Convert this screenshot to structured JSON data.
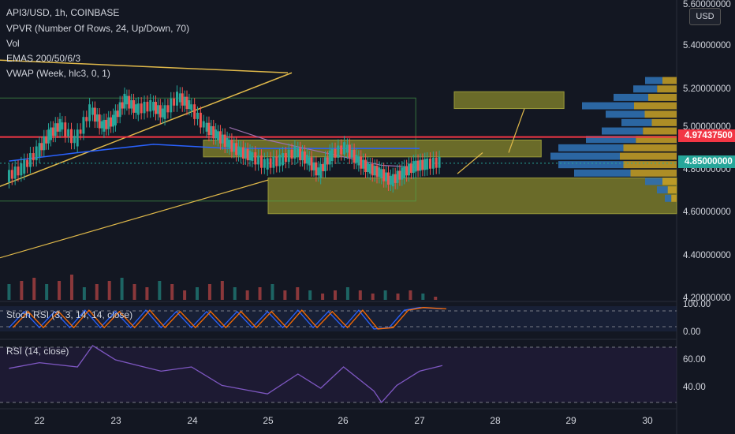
{
  "header": {
    "symbol_line": "API3/USD, 1h, COINBASE",
    "indicators": [
      "VPVR (Number Of Rows, 24, Up/Down, 70)",
      "Vol",
      "EMAS 200/50/6/3",
      "VWAP (Week, hlc3, 0, 1)"
    ]
  },
  "currency_button": "USD",
  "price_axis": {
    "labels": [
      "5.60000000",
      "5.40000000",
      "5.20000000",
      "5.00000000",
      "4.80000000",
      "4.60000000",
      "4.40000000",
      "4.20000000"
    ],
    "red_tag": "4.97437500",
    "green_tag": "4.85000000"
  },
  "stoch_panel": {
    "title": "Stoch RSI (3, 3, 14, 14, close)",
    "labels": [
      "100.00",
      "0.00"
    ]
  },
  "rsi_panel": {
    "title": "RSI (14, close)",
    "labels": [
      "60.00",
      "40.00"
    ]
  },
  "time_axis": {
    "labels": [
      "22",
      "23",
      "24",
      "25",
      "26",
      "27",
      "28",
      "29",
      "30"
    ]
  },
  "colors": {
    "background": "#131722",
    "up": "#26a69a",
    "down": "#ef5350",
    "zone": "#7a7a2a",
    "red_line": "#f23645",
    "blue_ema": "#2962ff",
    "vwap": "#9c6fb0",
    "trendline": "#e0b94a"
  },
  "chart_data": {
    "type": "candlestick",
    "title": "API3/USD, 1h, COINBASE",
    "xlabel": "",
    "ylabel": "",
    "x_ticks": [
      "22",
      "23",
      "24",
      "25",
      "26",
      "27",
      "28",
      "29",
      "30"
    ],
    "ylim": [
      4.2,
      5.65
    ],
    "y_ticks": [
      5.6,
      5.4,
      5.2,
      5.0,
      4.8,
      4.6,
      4.4,
      4.2
    ],
    "horizontal_line": 4.974375,
    "last_price": 4.85,
    "grid": false,
    "price_path": [
      [
        21.6,
        4.78
      ],
      [
        21.8,
        4.82
      ],
      [
        22.0,
        4.9
      ],
      [
        22.15,
        4.98
      ],
      [
        22.3,
        5.03
      ],
      [
        22.5,
        4.95
      ],
      [
        22.7,
        5.1
      ],
      [
        22.85,
        5.02
      ],
      [
        23.0,
        5.05
      ],
      [
        23.15,
        5.15
      ],
      [
        23.3,
        5.1
      ],
      [
        23.5,
        5.12
      ],
      [
        23.65,
        5.08
      ],
      [
        23.85,
        5.16
      ],
      [
        24.0,
        5.12
      ],
      [
        24.2,
        5.02
      ],
      [
        24.35,
        4.98
      ],
      [
        24.5,
        4.94
      ],
      [
        24.65,
        4.9
      ],
      [
        24.8,
        4.88
      ],
      [
        25.0,
        4.84
      ],
      [
        25.2,
        4.86
      ],
      [
        25.4,
        4.9
      ],
      [
        25.55,
        4.86
      ],
      [
        25.7,
        4.8
      ],
      [
        25.85,
        4.88
      ],
      [
        26.05,
        4.92
      ],
      [
        26.2,
        4.86
      ],
      [
        26.35,
        4.82
      ],
      [
        26.5,
        4.8
      ],
      [
        26.65,
        4.76
      ],
      [
        26.8,
        4.8
      ],
      [
        26.95,
        4.83
      ],
      [
        27.1,
        4.84
      ],
      [
        27.3,
        4.85
      ]
    ],
    "volume_heights": [
      0.5,
      0.6,
      0.7,
      0.5,
      0.6,
      0.8,
      0.4,
      0.5,
      0.6,
      0.7,
      0.5,
      0.4,
      0.6,
      0.5,
      0.3,
      0.4,
      0.5,
      0.6,
      0.4,
      0.3,
      0.4,
      0.5,
      0.3,
      0.4,
      0.3,
      0.2,
      0.3,
      0.4,
      0.3,
      0.2,
      0.3,
      0.2,
      0.3,
      0.2,
      0.1
    ],
    "rsi": [
      [
        21.6,
        54
      ],
      [
        22.0,
        58
      ],
      [
        22.5,
        55
      ],
      [
        22.7,
        70
      ],
      [
        23.0,
        60
      ],
      [
        23.3,
        56
      ],
      [
        23.6,
        52
      ],
      [
        24.0,
        55
      ],
      [
        24.4,
        42
      ],
      [
        24.8,
        38
      ],
      [
        25.0,
        36
      ],
      [
        25.4,
        50
      ],
      [
        25.7,
        40
      ],
      [
        26.0,
        55
      ],
      [
        26.4,
        38
      ],
      [
        26.5,
        30
      ],
      [
        26.7,
        42
      ],
      [
        27.0,
        52
      ],
      [
        27.3,
        56
      ]
    ],
    "stoch_rsi": [
      [
        21.6,
        20
      ],
      [
        21.8,
        80
      ],
      [
        22.0,
        20
      ],
      [
        22.2,
        80
      ],
      [
        22.4,
        20
      ],
      [
        22.6,
        85
      ],
      [
        22.8,
        20
      ],
      [
        23.0,
        80
      ],
      [
        23.2,
        20
      ],
      [
        23.4,
        85
      ],
      [
        23.6,
        20
      ],
      [
        23.8,
        80
      ],
      [
        24.0,
        20
      ],
      [
        24.2,
        80
      ],
      [
        24.4,
        20
      ],
      [
        24.6,
        80
      ],
      [
        24.8,
        20
      ],
      [
        25.0,
        80
      ],
      [
        25.2,
        20
      ],
      [
        25.4,
        85
      ],
      [
        25.6,
        20
      ],
      [
        25.8,
        80
      ],
      [
        26.0,
        20
      ],
      [
        26.2,
        85
      ],
      [
        26.4,
        15
      ],
      [
        26.6,
        20
      ],
      [
        26.8,
        85
      ],
      [
        27.0,
        95
      ],
      [
        27.3,
        90
      ]
    ]
  }
}
